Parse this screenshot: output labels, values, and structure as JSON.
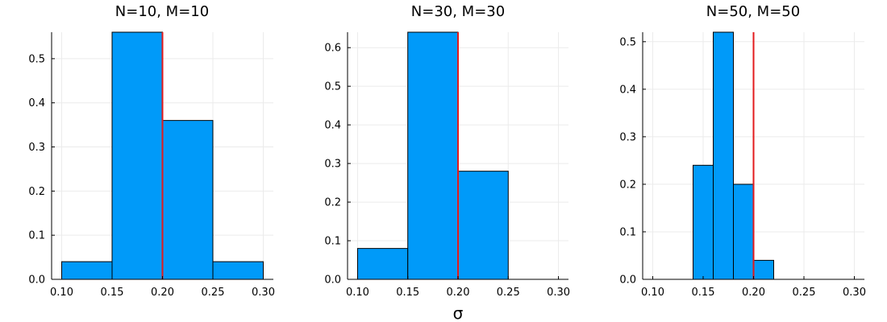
{
  "figure": {
    "xlabel": "σ",
    "colors": {
      "bar": "#009af9",
      "bar_edge": "#000000",
      "ref_line": "#e31a1c",
      "grid": "#ebebeb",
      "axis": "#000000"
    }
  },
  "chart_data": [
    {
      "type": "bar",
      "title": "N=10, M=10",
      "xlabel": "",
      "ylabel": "",
      "xlim": [
        0.09,
        0.31
      ],
      "ylim": [
        0,
        0.56
      ],
      "x_ticks": [
        "0.10",
        "0.15",
        "0.20",
        "0.25",
        "0.30"
      ],
      "y_ticks": [
        "0.0",
        "0.1",
        "0.2",
        "0.3",
        "0.4",
        "0.5"
      ],
      "bins": [
        [
          0.1,
          0.15
        ],
        [
          0.15,
          0.2
        ],
        [
          0.2,
          0.25
        ],
        [
          0.25,
          0.3
        ]
      ],
      "values": [
        0.04,
        0.56,
        0.36,
        0.04
      ],
      "reference_line_x": 0.2,
      "grid": true,
      "legend": "none"
    },
    {
      "type": "bar",
      "title": "N=30, M=30",
      "xlabel": "σ",
      "ylabel": "",
      "xlim": [
        0.09,
        0.31
      ],
      "ylim": [
        0,
        0.64
      ],
      "x_ticks": [
        "0.10",
        "0.15",
        "0.20",
        "0.25",
        "0.30"
      ],
      "y_ticks": [
        "0.0",
        "0.1",
        "0.2",
        "0.3",
        "0.4",
        "0.5",
        "0.6"
      ],
      "bins": [
        [
          0.1,
          0.15
        ],
        [
          0.15,
          0.2
        ],
        [
          0.2,
          0.25
        ]
      ],
      "values": [
        0.08,
        0.64,
        0.28
      ],
      "reference_line_x": 0.2,
      "grid": true,
      "legend": "none"
    },
    {
      "type": "bar",
      "title": "N=50, M=50",
      "xlabel": "",
      "ylabel": "",
      "xlim": [
        0.09,
        0.31
      ],
      "ylim": [
        0,
        0.52
      ],
      "x_ticks": [
        "0.10",
        "0.15",
        "0.20",
        "0.25",
        "0.30"
      ],
      "y_ticks": [
        "0.0",
        "0.1",
        "0.2",
        "0.3",
        "0.4",
        "0.5"
      ],
      "bins": [
        [
          0.14,
          0.16
        ],
        [
          0.16,
          0.18
        ],
        [
          0.18,
          0.2
        ],
        [
          0.2,
          0.22
        ]
      ],
      "values": [
        0.24,
        0.52,
        0.2,
        0.04
      ],
      "reference_line_x": 0.2,
      "grid": true,
      "legend": "none"
    }
  ]
}
